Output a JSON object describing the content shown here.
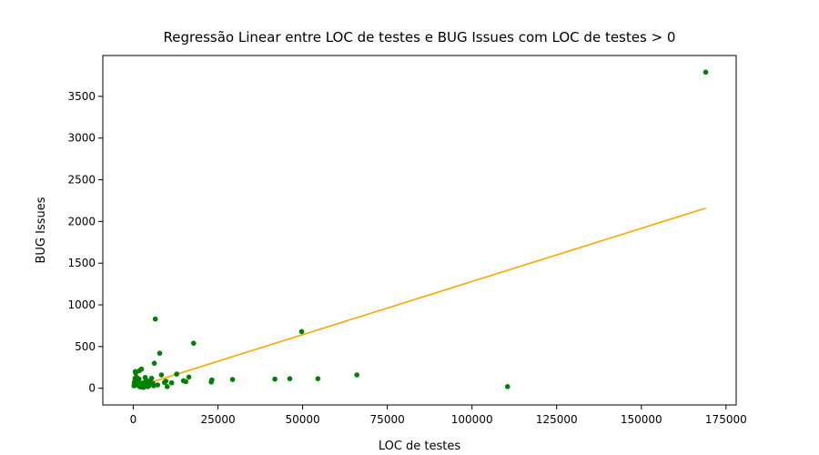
{
  "chart_data": {
    "type": "scatter",
    "title": "Regressão Linear entre LOC de testes e BUG Issues com LOC de testes > 0",
    "xlabel": "LOC de testes",
    "ylabel": "BUG Issues",
    "xlim": [
      -9000,
      178000
    ],
    "ylim": [
      -200,
      3990
    ],
    "xticks": [
      0,
      25000,
      50000,
      75000,
      100000,
      125000,
      150000,
      175000
    ],
    "yticks": [
      0,
      500,
      1000,
      1500,
      2000,
      2500,
      3000,
      3500
    ],
    "grid": false,
    "colors": {
      "points": "#008000",
      "regression": "#ffa500"
    },
    "series": [
      {
        "kind": "points",
        "x": [
          169000,
          110500,
          66000,
          54500,
          49700,
          46200,
          41800,
          29300,
          23200,
          23000,
          17800,
          16400,
          15500,
          14800,
          12800,
          11300,
          10000,
          9600,
          9200,
          8300,
          7800,
          7200,
          6500,
          6200,
          6000,
          5800,
          5400,
          5000,
          4600,
          4300,
          4100,
          3800,
          3500,
          3200,
          3000,
          2700,
          2400,
          2100,
          1900,
          1700,
          1500,
          1300,
          1100,
          900,
          700,
          500,
          300,
          200,
          1800,
          2200,
          1000,
          600,
          400,
          2600,
          3300
        ],
        "y": [
          3790,
          20,
          160,
          115,
          680,
          115,
          110,
          105,
          100,
          75,
          540,
          135,
          80,
          90,
          170,
          65,
          20,
          85,
          70,
          160,
          420,
          40,
          830,
          300,
          30,
          60,
          120,
          80,
          30,
          20,
          90,
          50,
          130,
          70,
          10,
          40,
          230,
          60,
          20,
          110,
          80,
          60,
          100,
          40,
          180,
          120,
          60,
          30,
          210,
          15,
          130,
          200,
          80,
          50,
          30
        ]
      },
      {
        "kind": "regression",
        "x": [
          0,
          169000
        ],
        "y": [
          5,
          2160
        ]
      }
    ]
  }
}
